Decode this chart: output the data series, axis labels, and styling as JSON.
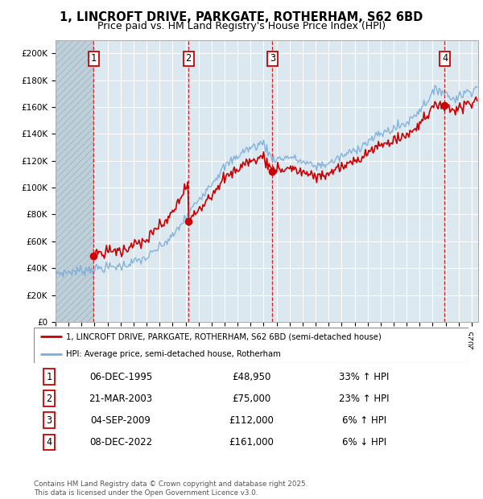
{
  "title_line1": "1, LINCROFT DRIVE, PARKGATE, ROTHERHAM, S62 6BD",
  "title_line2": "Price paid vs. HM Land Registry's House Price Index (HPI)",
  "ylim": [
    0,
    210000
  ],
  "yticks": [
    0,
    20000,
    40000,
    60000,
    80000,
    100000,
    120000,
    140000,
    160000,
    180000,
    200000
  ],
  "ytick_labels": [
    "£0",
    "£20K",
    "£40K",
    "£60K",
    "£80K",
    "£100K",
    "£120K",
    "£140K",
    "£160K",
    "£180K",
    "£200K"
  ],
  "xlim_start": 1993.0,
  "xlim_end": 2025.5,
  "sale_dates": [
    1995.92,
    2003.22,
    2009.67,
    2022.93
  ],
  "sale_prices": [
    48950,
    75000,
    112000,
    161000
  ],
  "sale_labels": [
    "1",
    "2",
    "3",
    "4"
  ],
  "transaction_table": [
    {
      "num": "1",
      "date": "06-DEC-1995",
      "price": "£48,950",
      "hpi": "33% ↑ HPI"
    },
    {
      "num": "2",
      "date": "21-MAR-2003",
      "price": "£75,000",
      "hpi": "23% ↑ HPI"
    },
    {
      "num": "3",
      "date": "04-SEP-2009",
      "price": "£112,000",
      "hpi": "6% ↑ HPI"
    },
    {
      "num": "4",
      "date": "08-DEC-2022",
      "price": "£161,000",
      "hpi": "6% ↓ HPI"
    }
  ],
  "legend_line1": "1, LINCROFT DRIVE, PARKGATE, ROTHERHAM, S62 6BD (semi-detached house)",
  "legend_line2": "HPI: Average price, semi-detached house, Rotherham",
  "footer": "Contains HM Land Registry data © Crown copyright and database right 2025.\nThis data is licensed under the Open Government Licence v3.0.",
  "line_color_red": "#cc0000",
  "line_color_blue": "#7aaddb",
  "chart_bg": "#dce8f0",
  "grid_color": "#ffffff",
  "hatch_color": "#c0d0da"
}
